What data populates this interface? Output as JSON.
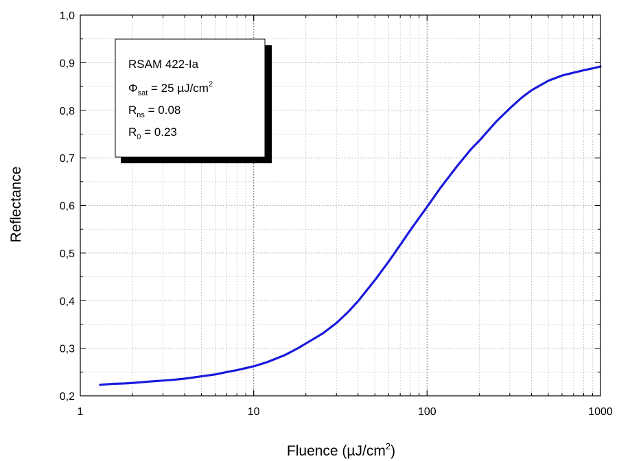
{
  "chart_data": {
    "type": "line",
    "xlabel": "Fluence (µJ/cm²)",
    "xlabel_parts": {
      "base": "Fluence (µJ/cm",
      "sup": "2",
      "end": ")"
    },
    "ylabel": "Reflectance",
    "x_scale": "log",
    "xlim": [
      1,
      1000
    ],
    "ylim": [
      0.2,
      1.0
    ],
    "x_ticks": [
      1,
      10,
      100,
      1000
    ],
    "x_tick_labels": [
      "1",
      "10",
      "100",
      "1000"
    ],
    "y_ticks": [
      0.2,
      0.3,
      0.4,
      0.5,
      0.6,
      0.7,
      0.8,
      0.9,
      1.0
    ],
    "y_tick_labels": [
      "0,2",
      "0,3",
      "0,4",
      "0,5",
      "0,6",
      "0,7",
      "0,8",
      "0,9",
      "1,0"
    ],
    "grid": true,
    "legend_position": "top-left",
    "line_color": "#1a1adc",
    "annotation": {
      "line1": "RSAM 422-Ia",
      "phi_symbol": "Φ",
      "phi_sub": "sat",
      "phi_value": " = 25 µJ/cm",
      "phi_sup": "2",
      "rns_symbol": "R",
      "rns_sub": "ns",
      "rns_value": " = 0.08",
      "r0_symbol": "R",
      "r0_sub": "0",
      "r0_value": "  = 0.23"
    },
    "series": [
      {
        "x": [
          1.3,
          1.5,
          1.8,
          2,
          2.5,
          3,
          3.5,
          4,
          5,
          6,
          7,
          8,
          10,
          12,
          15,
          18,
          20,
          25,
          30,
          35,
          40,
          50,
          60,
          70,
          80,
          90,
          100,
          120,
          150,
          180,
          200,
          250,
          300,
          350,
          400,
          500,
          600,
          700,
          800,
          900,
          1000
        ],
        "y": [
          0.223,
          0.225,
          0.226,
          0.227,
          0.23,
          0.232,
          0.234,
          0.236,
          0.241,
          0.245,
          0.25,
          0.254,
          0.262,
          0.271,
          0.285,
          0.3,
          0.31,
          0.331,
          0.353,
          0.376,
          0.399,
          0.443,
          0.482,
          0.517,
          0.548,
          0.574,
          0.597,
          0.638,
          0.684,
          0.719,
          0.736,
          0.776,
          0.804,
          0.826,
          0.842,
          0.862,
          0.873,
          0.879,
          0.884,
          0.888,
          0.892
        ]
      }
    ]
  }
}
